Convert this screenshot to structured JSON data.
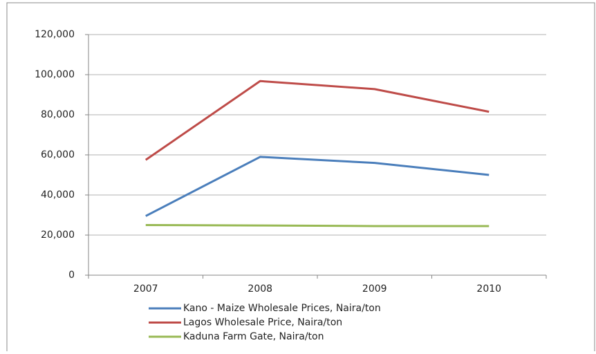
{
  "chart_data": {
    "type": "line",
    "categories": [
      "2007",
      "2008",
      "2009",
      "2010"
    ],
    "series": [
      {
        "name": "Kano - Maize Wholesale Prices, Naira/ton",
        "color": "#4a7ebb",
        "values": [
          29500,
          59000,
          56000,
          50000
        ]
      },
      {
        "name": "Lagos Wholesale Price, Naira/ton",
        "color": "#be4b48",
        "values": [
          57500,
          96800,
          92800,
          81500
        ]
      },
      {
        "name": "Kaduna Farm Gate, Naira/ton",
        "color": "#98b954",
        "values": [
          25000,
          24800,
          24500,
          24500
        ]
      }
    ],
    "ylim": [
      0,
      120000
    ],
    "yticks": [
      0,
      {
        "value": 20000,
        "label": "20,000"
      },
      {
        "value": 40000,
        "label": "40,000"
      },
      {
        "value": 60000,
        "label": "60,000"
      },
      {
        "value": 80000,
        "label": "80,000"
      },
      {
        "value": 100000,
        "label": "100,000"
      },
      {
        "value": 120000,
        "label": "120,000"
      }
    ],
    "grid": true,
    "legend": "bottom"
  }
}
